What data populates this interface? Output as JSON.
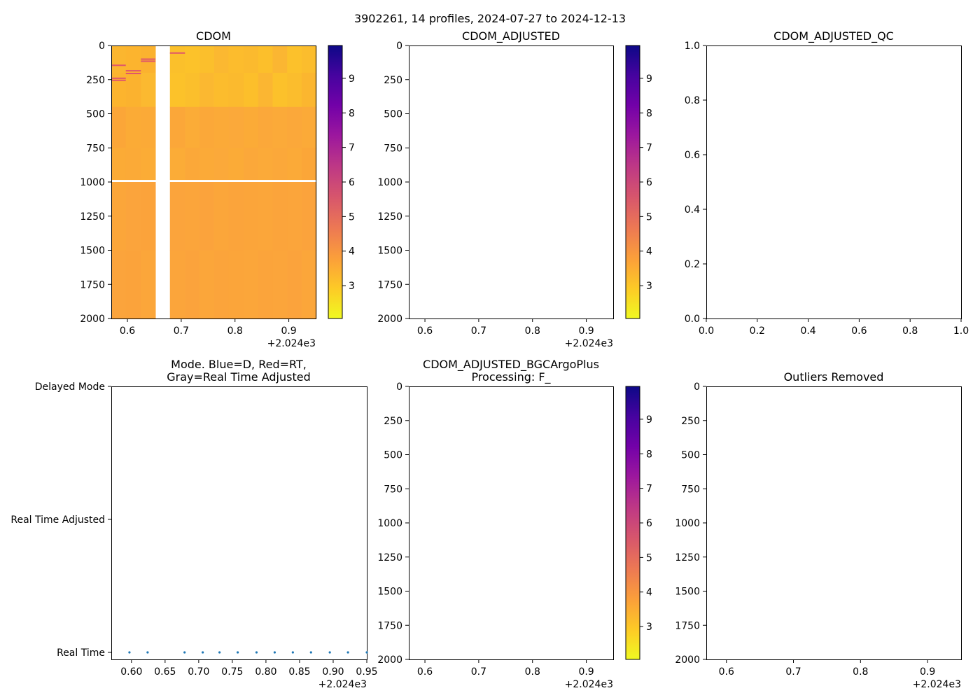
{
  "figure": {
    "title": "3902261, 14 profiles, 2024-07-27 to 2024-12-13"
  },
  "colors": {
    "plasma_r": [
      "#f0f921",
      "#fdca26",
      "#fb9f3a",
      "#ed7953",
      "#d8576b",
      "#bd3786",
      "#9c179e",
      "#7201a8",
      "#46039f",
      "#0d0887"
    ],
    "cdom_base": "#fba53a",
    "cdom_top": "#fbc22a",
    "outlier": "#e0566b",
    "mode_dot": "#1f77b4"
  },
  "chart_data": [
    {
      "id": "cdom",
      "type": "heatmap",
      "title": "CDOM",
      "x_ticks": [
        "0.6",
        "0.7",
        "0.8",
        "0.9"
      ],
      "x_tick_values": [
        0.6,
        0.7,
        0.8,
        0.9
      ],
      "x_offset_label": "+2.024e3",
      "xlim": [
        0.57,
        0.95
      ],
      "y_ticks": [
        "0",
        "250",
        "500",
        "750",
        "1000",
        "1250",
        "1500",
        "1750",
        "2000"
      ],
      "ylim": [
        0,
        2000
      ],
      "y_inverted": true,
      "profile_x": [
        0.57,
        0.597,
        0.625,
        0.652,
        0.679,
        0.707,
        0.734,
        0.761,
        0.788,
        0.816,
        0.843,
        0.87,
        0.897,
        0.924,
        0.951
      ],
      "missing_profile_index": 3,
      "gap_depth": [
        985,
        1000
      ],
      "colorbar": {
        "ticks": [
          "3",
          "4",
          "5",
          "6",
          "7",
          "8",
          "9"
        ],
        "tick_values": [
          3,
          4,
          5,
          6,
          7,
          8,
          9
        ],
        "range": [
          2.05,
          9.95
        ]
      }
    },
    {
      "id": "cdom_adjusted",
      "type": "heatmap",
      "title": "CDOM_ADJUSTED",
      "x_ticks": [
        "0.6",
        "0.7",
        "0.8",
        "0.9"
      ],
      "x_tick_values": [
        0.6,
        0.7,
        0.8,
        0.9
      ],
      "x_offset_label": "+2.024e3",
      "xlim": [
        0.57,
        0.95
      ],
      "y_ticks": [
        "0",
        "250",
        "500",
        "750",
        "1000",
        "1250",
        "1500",
        "1750",
        "2000"
      ],
      "ylim": [
        0,
        2000
      ],
      "y_inverted": true,
      "colorbar": {
        "ticks": [
          "3",
          "4",
          "5",
          "6",
          "7",
          "8",
          "9"
        ],
        "tick_values": [
          3,
          4,
          5,
          6,
          7,
          8,
          9
        ],
        "range": [
          2.05,
          9.95
        ]
      }
    },
    {
      "id": "cdom_adjusted_qc",
      "type": "scatter",
      "title": "CDOM_ADJUSTED_QC",
      "x_ticks": [
        "0.0",
        "0.2",
        "0.4",
        "0.6",
        "0.8",
        "1.0"
      ],
      "x_tick_values": [
        0,
        0.2,
        0.4,
        0.6,
        0.8,
        1.0
      ],
      "xlim": [
        0,
        1
      ],
      "y_ticks": [
        "0.0",
        "0.2",
        "0.4",
        "0.6",
        "0.8",
        "1.0"
      ],
      "y_tick_values": [
        0,
        0.2,
        0.4,
        0.6,
        0.8,
        1.0
      ],
      "ylim": [
        0,
        1
      ]
    },
    {
      "id": "mode",
      "type": "scatter",
      "title_lines": [
        "Mode. Blue=D, Red=RT,",
        "Gray=Real Time Adjusted"
      ],
      "x_ticks": [
        "0.60",
        "0.65",
        "0.70",
        "0.75",
        "0.80",
        "0.85",
        "0.90",
        "0.95"
      ],
      "x_tick_values": [
        0.6,
        0.65,
        0.7,
        0.75,
        0.8,
        0.85,
        0.9,
        0.95
      ],
      "x_offset_label": "+2.024e3",
      "xlim": [
        0.57,
        0.95
      ],
      "y_categories": [
        "Delayed Mode",
        "Real Time Adjusted",
        "Real Time"
      ],
      "points_x": [
        0.597,
        0.624,
        0.679,
        0.706,
        0.731,
        0.758,
        0.786,
        0.813,
        0.84,
        0.867,
        0.895,
        0.922,
        0.95
      ],
      "points_category": "Real Time"
    },
    {
      "id": "bgc_argo_plus",
      "type": "heatmap",
      "title_lines": [
        "CDOM_ADJUSTED_BGCArgoPlus",
        "Processing: F_"
      ],
      "x_ticks": [
        "0.6",
        "0.7",
        "0.8",
        "0.9"
      ],
      "x_tick_values": [
        0.6,
        0.7,
        0.8,
        0.9
      ],
      "x_offset_label": "+2.024e3",
      "xlim": [
        0.57,
        0.95
      ],
      "y_ticks": [
        "0",
        "250",
        "500",
        "750",
        "1000",
        "1250",
        "1500",
        "1750",
        "2000"
      ],
      "ylim": [
        0,
        2000
      ],
      "y_inverted": true,
      "colorbar": {
        "ticks": [
          "3",
          "4",
          "5",
          "6",
          "7",
          "8",
          "9"
        ],
        "tick_values": [
          3,
          4,
          5,
          6,
          7,
          8,
          9
        ],
        "range": [
          2.05,
          9.95
        ]
      }
    },
    {
      "id": "outliers",
      "type": "heatmap",
      "title": "Outliers Removed",
      "x_ticks": [
        "0.6",
        "0.7",
        "0.8",
        "0.9"
      ],
      "x_tick_values": [
        0.6,
        0.7,
        0.8,
        0.9
      ],
      "x_offset_label": "+2.024e3",
      "xlim": [
        0.57,
        0.95
      ],
      "y_ticks": [
        "0",
        "250",
        "500",
        "750",
        "1000",
        "1250",
        "1500",
        "1750",
        "2000"
      ],
      "ylim": [
        0,
        2000
      ],
      "y_inverted": true
    }
  ]
}
